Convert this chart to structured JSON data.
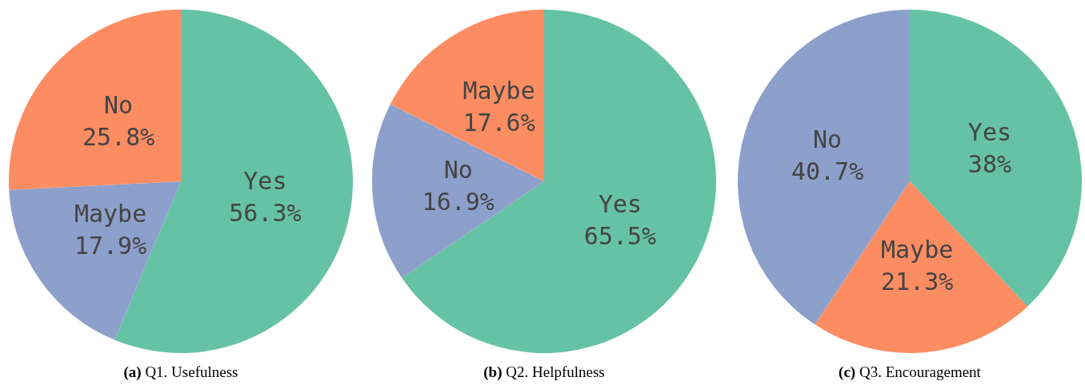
{
  "chart_data": [
    {
      "type": "pie",
      "title": "(a) Q1. Usefulness",
      "categories": [
        "Yes",
        "Maybe",
        "No"
      ],
      "values": [
        56.3,
        17.9,
        25.8
      ],
      "colors": [
        "#66c2a5",
        "#8da0cb",
        "#fc8d62"
      ],
      "value_labels": [
        "56.3%",
        "17.9%",
        "25.8%"
      ]
    },
    {
      "type": "pie",
      "title": "(b) Q2. Helpfulness",
      "categories": [
        "Yes",
        "No",
        "Maybe"
      ],
      "values": [
        65.5,
        16.9,
        17.6
      ],
      "colors": [
        "#66c2a5",
        "#8da0cb",
        "#fc8d62"
      ],
      "value_labels": [
        "65.5%",
        "16.9%",
        "17.6%"
      ]
    },
    {
      "type": "pie",
      "title": "(c) Q3. Encouragement",
      "categories": [
        "Yes",
        "Maybe",
        "No"
      ],
      "values": [
        38,
        21.3,
        40.7
      ],
      "colors": [
        "#66c2a5",
        "#fc8d62",
        "#8da0cb"
      ],
      "value_labels": [
        "38%",
        "21.3%",
        "40.7%"
      ]
    }
  ]
}
